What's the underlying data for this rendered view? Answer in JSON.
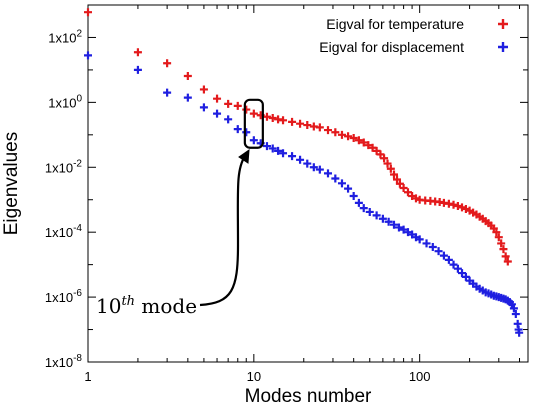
{
  "chart_data": {
    "type": "scatter",
    "xlabel": "Modes number",
    "ylabel": "Eigenvalues",
    "xscale": "log",
    "yscale": "log",
    "xlim": [
      1,
      450
    ],
    "ylim": [
      1e-08,
      1000
    ],
    "xticks": [
      {
        "value": 1,
        "label": "1"
      },
      {
        "value": 10,
        "label": "10"
      },
      {
        "value": 100,
        "label": "100"
      }
    ],
    "yticks": [
      {
        "value": 1e-08,
        "base": "1x10",
        "exp": "-8"
      },
      {
        "value": 1e-06,
        "base": "1x10",
        "exp": "-6"
      },
      {
        "value": 0.0001,
        "base": "1x10",
        "exp": "-4"
      },
      {
        "value": 0.01,
        "base": "1x10",
        "exp": "-2"
      },
      {
        "value": 1,
        "base": "1x10",
        "exp": "0"
      },
      {
        "value": 100,
        "base": "1x10",
        "exp": "2"
      }
    ],
    "legend_position": "top-right",
    "grid": false,
    "series": [
      {
        "name": "Eigval for temperature",
        "color": "#e31a1c",
        "marker": "plus",
        "points": [
          [
            1,
            600
          ],
          [
            2,
            35
          ],
          [
            3,
            16
          ],
          [
            4,
            6.5
          ],
          [
            5,
            2.5
          ],
          [
            6,
            1.3
          ],
          [
            7,
            0.9
          ],
          [
            8,
            0.78
          ],
          [
            9,
            0.6
          ],
          [
            10,
            0.45
          ],
          [
            11,
            0.4
          ],
          [
            12,
            0.36
          ],
          [
            13,
            0.33
          ],
          [
            14,
            0.3
          ],
          [
            15,
            0.28
          ],
          [
            17,
            0.25
          ],
          [
            19,
            0.22
          ],
          [
            21,
            0.2
          ],
          [
            23,
            0.18
          ],
          [
            25,
            0.17
          ],
          [
            28,
            0.14
          ],
          [
            31,
            0.12
          ],
          [
            34,
            0.1
          ],
          [
            37,
            0.09
          ],
          [
            40,
            0.08
          ],
          [
            43,
            0.068
          ],
          [
            46,
            0.058
          ],
          [
            49,
            0.048
          ],
          [
            52,
            0.04
          ],
          [
            55,
            0.032
          ],
          [
            58,
            0.025
          ],
          [
            61,
            0.019
          ],
          [
            64,
            0.013
          ],
          [
            67,
            0.009
          ],
          [
            70,
            0.006
          ],
          [
            73,
            0.0042
          ],
          [
            76,
            0.0031
          ],
          [
            80,
            0.0023
          ],
          [
            85,
            0.0017
          ],
          [
            90,
            0.0013
          ],
          [
            95,
            0.0011
          ],
          [
            100,
            0.001
          ],
          [
            108,
            0.00095
          ],
          [
            116,
            0.00092
          ],
          [
            124,
            0.00088
          ],
          [
            132,
            0.00085
          ],
          [
            140,
            0.0008
          ],
          [
            150,
            0.00075
          ],
          [
            160,
            0.0007
          ],
          [
            170,
            0.00064
          ],
          [
            180,
            0.00058
          ],
          [
            190,
            0.00052
          ],
          [
            200,
            0.00046
          ],
          [
            210,
            0.0004
          ],
          [
            220,
            0.00035
          ],
          [
            230,
            0.0003
          ],
          [
            240,
            0.00026
          ],
          [
            250,
            0.00022
          ],
          [
            260,
            0.00019
          ],
          [
            270,
            0.00016
          ],
          [
            280,
            0.00013
          ],
          [
            290,
            0.0001
          ],
          [
            300,
            7e-05
          ],
          [
            310,
            4.5e-05
          ],
          [
            320,
            3e-05
          ],
          [
            330,
            1.8e-05
          ],
          [
            340,
            1.25e-05
          ]
        ]
      },
      {
        "name": "Eigval for displacement",
        "color": "#1f1fe0",
        "marker": "plus",
        "points": [
          [
            1,
            28
          ],
          [
            2,
            10
          ],
          [
            3,
            2
          ],
          [
            4,
            1.4
          ],
          [
            5,
            0.7
          ],
          [
            6,
            0.45
          ],
          [
            7,
            0.3
          ],
          [
            8,
            0.15
          ],
          [
            9,
            0.12
          ],
          [
            10,
            0.068
          ],
          [
            11,
            0.055
          ],
          [
            12,
            0.045
          ],
          [
            13,
            0.038
          ],
          [
            14,
            0.032
          ],
          [
            15,
            0.027
          ],
          [
            17,
            0.022
          ],
          [
            19,
            0.017
          ],
          [
            21,
            0.013
          ],
          [
            23,
            0.01
          ],
          [
            25,
            0.0085
          ],
          [
            28,
            0.0065
          ],
          [
            31,
            0.0045
          ],
          [
            34,
            0.0032
          ],
          [
            37,
            0.0022
          ],
          [
            40,
            0.0013
          ],
          [
            43,
            0.0008
          ],
          [
            46,
            0.00055
          ],
          [
            50,
            0.00042
          ],
          [
            55,
            0.00033
          ],
          [
            60,
            0.00026
          ],
          [
            65,
            0.00021
          ],
          [
            70,
            0.00017
          ],
          [
            75,
            0.00014
          ],
          [
            80,
            0.00012
          ],
          [
            85,
            0.0001
          ],
          [
            90,
            8.5e-05
          ],
          [
            95,
            7e-05
          ],
          [
            100,
            6e-05
          ],
          [
            110,
            4.5e-05
          ],
          [
            120,
            3.5e-05
          ],
          [
            130,
            2.6e-05
          ],
          [
            140,
            1.9e-05
          ],
          [
            150,
            1.4e-05
          ],
          [
            160,
            1e-05
          ],
          [
            170,
            7.5e-06
          ],
          [
            180,
            5.5e-06
          ],
          [
            190,
            4.2e-06
          ],
          [
            200,
            3.2e-06
          ],
          [
            210,
            2.6e-06
          ],
          [
            220,
            2.1e-06
          ],
          [
            230,
            1.8e-06
          ],
          [
            240,
            1.6e-06
          ],
          [
            250,
            1.4e-06
          ],
          [
            260,
            1.3e-06
          ],
          [
            270,
            1.2e-06
          ],
          [
            280,
            1.1e-06
          ],
          [
            290,
            1.05e-06
          ],
          [
            300,
            1e-06
          ],
          [
            310,
            9.5e-07
          ],
          [
            320,
            9e-07
          ],
          [
            330,
            8.5e-07
          ],
          [
            340,
            7.8e-07
          ],
          [
            350,
            7e-07
          ],
          [
            360,
            6e-07
          ],
          [
            370,
            4.5e-07
          ],
          [
            380,
            3e-07
          ],
          [
            390,
            1.5e-07
          ],
          [
            395,
            1e-07
          ],
          [
            398,
            8e-08
          ]
        ]
      }
    ],
    "annotation": {
      "text_base": "10",
      "text_sup": "th",
      "text_tail": " mode",
      "x": 10,
      "y_low": 0.04,
      "y_high": 1.2
    }
  }
}
